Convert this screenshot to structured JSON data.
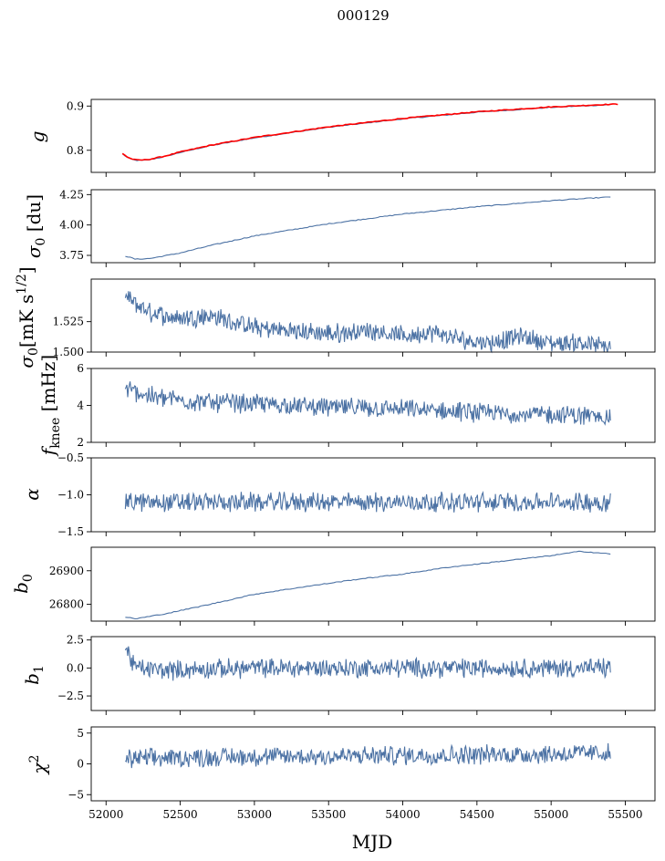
{
  "chart_data": {
    "type": "line",
    "title": "000129",
    "xlabel": "MJD",
    "xlim": [
      51900,
      55700
    ],
    "x_ticks": [
      52000,
      52500,
      53000,
      53500,
      54000,
      54500,
      55000,
      55500
    ],
    "x_tick_labels": [
      "52000",
      "52500",
      "53000",
      "53500",
      "54000",
      "54500",
      "55000",
      "55500"
    ],
    "panels": [
      {
        "ylabel": "g",
        "ylim": [
          0.75,
          0.915
        ],
        "y_ticks": [
          0.8,
          0.9
        ],
        "y_tick_labels": [
          "0.8",
          "0.9"
        ],
        "series": [
          {
            "color": "#4c72a4",
            "style": "smooth",
            "x": [
              52110,
              52150,
              52200,
              52250,
              52300,
              52400,
              52500,
              52700,
              53000,
              53500,
              54000,
              54500,
              55000,
              55400
            ],
            "y": [
              0.792,
              0.782,
              0.777,
              0.777,
              0.779,
              0.786,
              0.795,
              0.81,
              0.828,
              0.852,
              0.871,
              0.886,
              0.897,
              0.903
            ]
          },
          {
            "color": "#ff0000",
            "style": "smooth",
            "x": [
              52110,
              52150,
              52200,
              52250,
              52300,
              52400,
              52500,
              52700,
              53000,
              53500,
              54000,
              54500,
              55000,
              55400,
              55450
            ],
            "y": [
              0.793,
              0.783,
              0.778,
              0.778,
              0.78,
              0.787,
              0.796,
              0.811,
              0.829,
              0.853,
              0.872,
              0.887,
              0.898,
              0.904,
              0.904
            ]
          }
        ]
      },
      {
        "ylabel": "σ0 [du]",
        "ylim": [
          3.69,
          4.29
        ],
        "y_ticks": [
          3.75,
          4.0,
          4.25
        ],
        "y_tick_labels": [
          "3.75",
          "4.00",
          "4.25"
        ],
        "series": [
          {
            "color": "#4c72a4",
            "style": "smooth",
            "x": [
              52130,
              52200,
              52300,
              52500,
              52700,
              53000,
              53500,
              54000,
              54500,
              55000,
              55400
            ],
            "y": [
              3.745,
              3.718,
              3.725,
              3.77,
              3.83,
              3.91,
              4.01,
              4.09,
              4.15,
              4.2,
              4.23
            ]
          }
        ]
      },
      {
        "ylabel": "σ0[mK s^1/2]",
        "ylim": [
          1.5,
          1.56
        ],
        "y_ticks": [
          1.5,
          1.525
        ],
        "y_tick_labels": [
          "1.500",
          "1.525"
        ],
        "series": [
          {
            "color": "#4c72a4",
            "style": "noisy",
            "x": [
              52130,
              52300,
              52500,
              52700,
              53000,
              53300,
              53500,
              53800,
              54000,
              54200,
              54400,
              54600,
              54800,
              55000,
              55200,
              55400
            ],
            "y": [
              1.545,
              1.532,
              1.528,
              1.53,
              1.52,
              1.517,
              1.515,
              1.518,
              1.513,
              1.516,
              1.51,
              1.508,
              1.513,
              1.507,
              1.508,
              1.503
            ]
          }
        ]
      },
      {
        "ylabel": "fknee [mHz]",
        "ylim": [
          2,
          6
        ],
        "y_ticks": [
          2,
          4,
          6
        ],
        "y_tick_labels": [
          "2",
          "4",
          "6"
        ],
        "series": [
          {
            "color": "#4c72a4",
            "style": "noisy",
            "x": [
              52130,
              52300,
              52600,
              53000,
              53500,
              54000,
              54500,
              55000,
              55400
            ],
            "y": [
              4.9,
              4.5,
              4.2,
              4.1,
              3.9,
              3.8,
              3.6,
              3.5,
              3.4
            ]
          }
        ]
      },
      {
        "ylabel": "α",
        "ylim": [
          -1.5,
          -0.5
        ],
        "y_ticks": [
          -1.5,
          -1.0,
          -0.5
        ],
        "y_tick_labels": [
          "−1.5",
          "−1.0",
          "−0.5"
        ],
        "series": [
          {
            "color": "#4c72a4",
            "style": "noisy",
            "x": [
              52130,
              52500,
              53000,
              53500,
              54000,
              54500,
              55000,
              55400
            ],
            "y": [
              -1.1,
              -1.1,
              -1.1,
              -1.1,
              -1.1,
              -1.1,
              -1.1,
              -1.1
            ]
          }
        ]
      },
      {
        "ylabel": "b0",
        "ylim": [
          26750,
          26970
        ],
        "y_ticks": [
          26800,
          26900
        ],
        "y_tick_labels": [
          "26800",
          "26900"
        ],
        "series": [
          {
            "color": "#4c72a4",
            "style": "smooth",
            "x": [
              52130,
              52200,
              52400,
              52700,
              53000,
              53300,
              53700,
              54000,
              54300,
              54700,
              55000,
              55200,
              55400
            ],
            "y": [
              26762,
              26757,
              26772,
              26800,
              26830,
              26850,
              26875,
              26890,
              26910,
              26930,
              26945,
              26958,
              26950
            ]
          }
        ]
      },
      {
        "ylabel": "b1",
        "ylim": [
          -3.8,
          2.8
        ],
        "y_ticks": [
          -2.5,
          0.0,
          2.5
        ],
        "y_tick_labels": [
          "−2.5",
          "0.0",
          "2.5"
        ],
        "series": [
          {
            "color": "#4c72a4",
            "style": "noisy",
            "x": [
              52130,
              52200,
              52400,
              53000,
              54000,
              55000,
              55400
            ],
            "y": [
              1.8,
              0.0,
              -0.2,
              0.0,
              0.0,
              0.0,
              0.0
            ]
          }
        ]
      },
      {
        "ylabel": "χ2",
        "ylim": [
          -6,
          6
        ],
        "y_ticks": [
          -5,
          0,
          5
        ],
        "y_tick_labels": [
          "−5",
          "0",
          "5"
        ],
        "series": [
          {
            "color": "#4c72a4",
            "style": "noisy",
            "x": [
              52130,
              52500,
              53000,
              53500,
              54000,
              54500,
              55000,
              55400
            ],
            "y": [
              0.8,
              1.0,
              1.2,
              1.2,
              1.4,
              1.5,
              1.6,
              1.8
            ]
          }
        ]
      }
    ]
  }
}
